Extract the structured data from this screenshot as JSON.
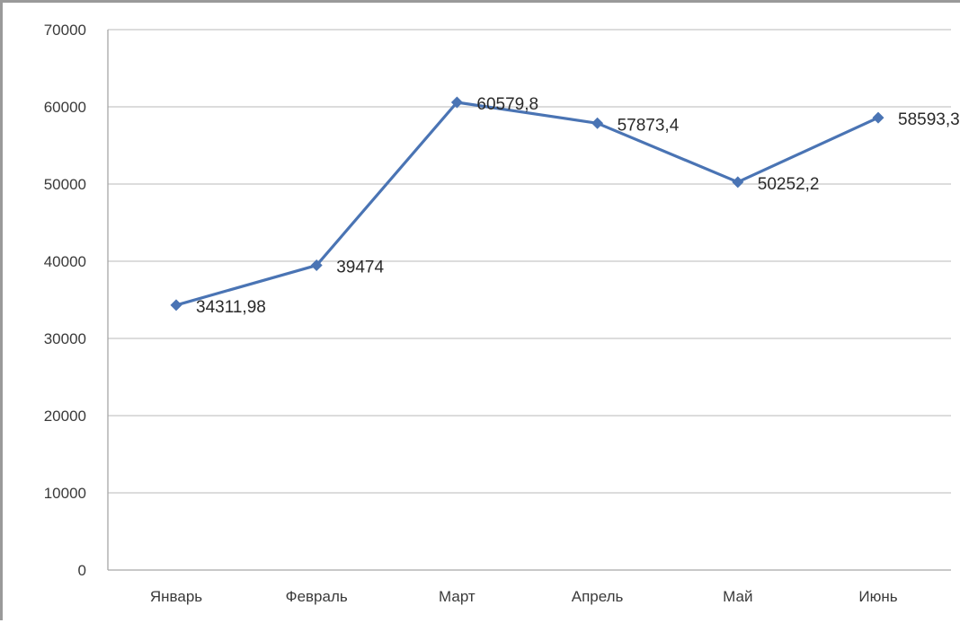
{
  "chart_data": {
    "type": "line",
    "title": "",
    "xlabel": "",
    "ylabel": "",
    "categories": [
      "Январь",
      "Февраль",
      "Март",
      "Апрель",
      "Май",
      "Июнь"
    ],
    "series": [
      {
        "values": [
          34311.98,
          39474,
          60579.8,
          57873.4,
          50252.2,
          58593.3
        ],
        "data_labels": [
          "34311,98",
          "39474",
          "60579,8",
          "57873,4",
          "50252,2",
          "58593,3"
        ],
        "color": "#4a74b4",
        "marker": "diamond"
      }
    ],
    "ylim": [
      0,
      70000
    ],
    "yticks": [
      0,
      10000,
      20000,
      30000,
      40000,
      50000,
      60000,
      70000
    ],
    "ytick_labels": [
      "0",
      "10000",
      "20000",
      "30000",
      "40000",
      "50000",
      "60000",
      "70000"
    ],
    "grid": true,
    "legend": "none",
    "gridline_color": "#c8c8c8",
    "axis_color": "#a6a6a6"
  }
}
